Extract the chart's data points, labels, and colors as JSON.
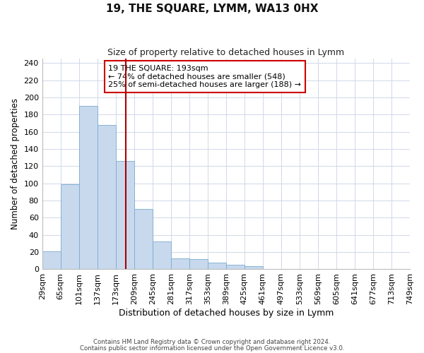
{
  "title": "19, THE SQUARE, LYMM, WA13 0HX",
  "subtitle": "Size of property relative to detached houses in Lymm",
  "xlabel": "Distribution of detached houses by size in Lymm",
  "ylabel": "Number of detached properties",
  "bar_color": "#c8d9ee",
  "bar_edge_color": "#7aabce",
  "background_color": "#ffffff",
  "grid_color": "#d0d8e8",
  "vline_color": "#aa0000",
  "vline_x": 4.99,
  "annotation_text": "19 THE SQUARE: 193sqm\n← 74% of detached houses are smaller (548)\n25% of semi-detached houses are larger (188) →",
  "annotation_box_edge": "#cc0000",
  "footer_line1": "Contains HM Land Registry data © Crown copyright and database right 2024.",
  "footer_line2": "Contains public sector information licensed under the Open Government Licence v3.0.",
  "bins": [
    "29sqm",
    "65sqm",
    "101sqm",
    "137sqm",
    "173sqm",
    "209sqm",
    "245sqm",
    "281sqm",
    "317sqm",
    "353sqm",
    "389sqm",
    "425sqm",
    "461sqm",
    "497sqm",
    "533sqm",
    "569sqm",
    "605sqm",
    "641sqm",
    "677sqm",
    "713sqm",
    "749sqm"
  ],
  "values": [
    21,
    99,
    190,
    168,
    126,
    70,
    32,
    13,
    12,
    8,
    5,
    4,
    0,
    0,
    0,
    0,
    0,
    0,
    0,
    0
  ],
  "ylim": [
    0,
    245
  ],
  "yticks": [
    0,
    20,
    40,
    60,
    80,
    100,
    120,
    140,
    160,
    180,
    200,
    220,
    240
  ]
}
